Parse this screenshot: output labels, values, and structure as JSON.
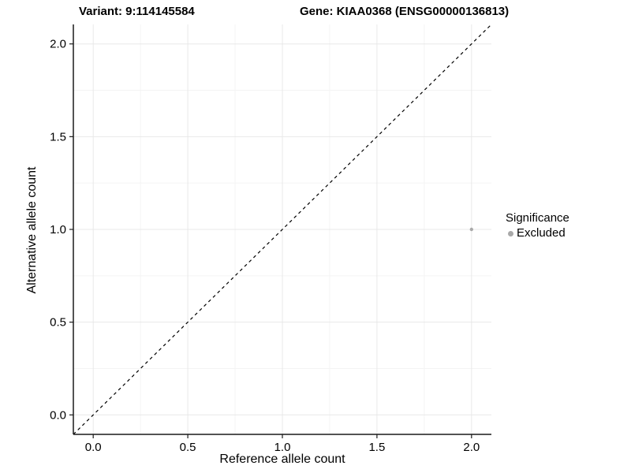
{
  "chart_data": {
    "type": "scatter",
    "title_variant": "Variant: 9:114145584",
    "title_gene": "Gene: KIAA0368 (ENSG00000136813)",
    "xlabel": "Reference allele count",
    "ylabel": "Alternative allele count",
    "xlim": [
      -0.105,
      2.105
    ],
    "ylim": [
      -0.105,
      2.105
    ],
    "x_ticks": [
      0.0,
      0.5,
      1.0,
      1.5,
      2.0
    ],
    "y_ticks": [
      0.0,
      0.5,
      1.0,
      1.5,
      2.0
    ],
    "x_minor_ticks": [
      0.25,
      0.75,
      1.25,
      1.75
    ],
    "y_minor_ticks": [
      0.25,
      0.75,
      1.25,
      1.75
    ],
    "tick_decimals": 1,
    "grid": true,
    "identity_line": {
      "style": "dashed",
      "from": [
        -0.105,
        -0.105
      ],
      "to": [
        2.105,
        2.105
      ],
      "color": "#000000"
    },
    "points": [
      {
        "x": 2.0,
        "y": 1.0,
        "series": "Excluded"
      }
    ],
    "series": [
      {
        "name": "Excluded",
        "color": "#A9A9A9"
      }
    ],
    "legend": {
      "title": "Significance",
      "position": "right",
      "items": [
        {
          "label": "Excluded",
          "color": "#A9A9A9"
        }
      ]
    },
    "colors": {
      "background": "#FFFFFF",
      "grid_major": "#E8E8E8",
      "grid_minor": "#F4F4F4",
      "axis_line": "#1A1A1A",
      "tick_text": "#000000",
      "point": "#A9A9A9"
    }
  }
}
